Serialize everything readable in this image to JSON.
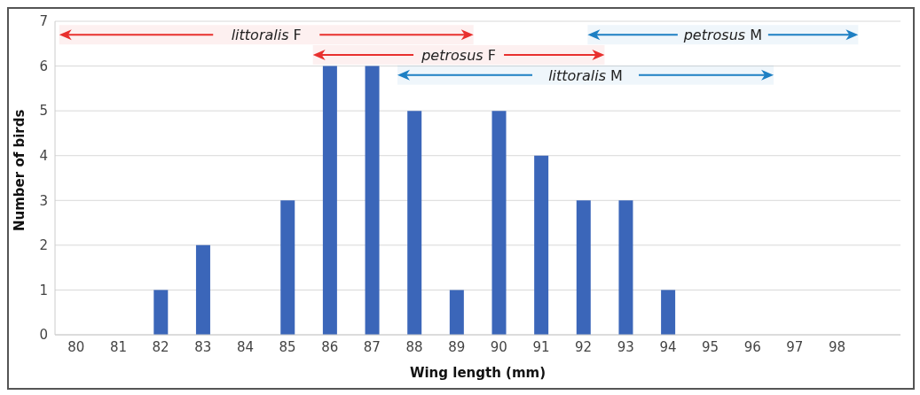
{
  "chart_data": {
    "type": "bar",
    "xlabel": "Wing length (mm)",
    "ylabel": "Number of birds",
    "x": [
      80,
      81,
      82,
      83,
      84,
      85,
      86,
      87,
      88,
      89,
      90,
      91,
      92,
      93,
      94,
      95,
      96,
      97,
      98
    ],
    "values": [
      0,
      0,
      1,
      2,
      0,
      3,
      6,
      6,
      5,
      1,
      5,
      4,
      3,
      3,
      1,
      0,
      0,
      0,
      0
    ],
    "color": "#3b66b9",
    "xlim": [
      79.5,
      99.5
    ],
    "xticks": [
      80,
      81,
      82,
      83,
      84,
      85,
      86,
      87,
      88,
      89,
      90,
      91,
      92,
      93,
      94,
      95,
      96,
      97,
      98
    ],
    "ylim": [
      0,
      7
    ],
    "yticks": [
      0,
      1,
      2,
      3,
      4,
      5,
      6,
      7
    ],
    "grid": "y",
    "bands": [
      {
        "axis": "x",
        "from": 79.6,
        "to": 89.4,
        "label": "littoralis F",
        "color": "#e8302e"
      },
      {
        "axis": "x",
        "from": 85.6,
        "to": 92.5,
        "label": "petrosus F",
        "color": "#e8302e"
      },
      {
        "axis": "x",
        "from": 92.1,
        "to": 98.5,
        "label": "petrosus M",
        "color": "#1d7fc3"
      },
      {
        "axis": "x",
        "from": 87.6,
        "to": 96.5,
        "label": "littoralis M",
        "color": "#1d7fc3"
      }
    ]
  }
}
